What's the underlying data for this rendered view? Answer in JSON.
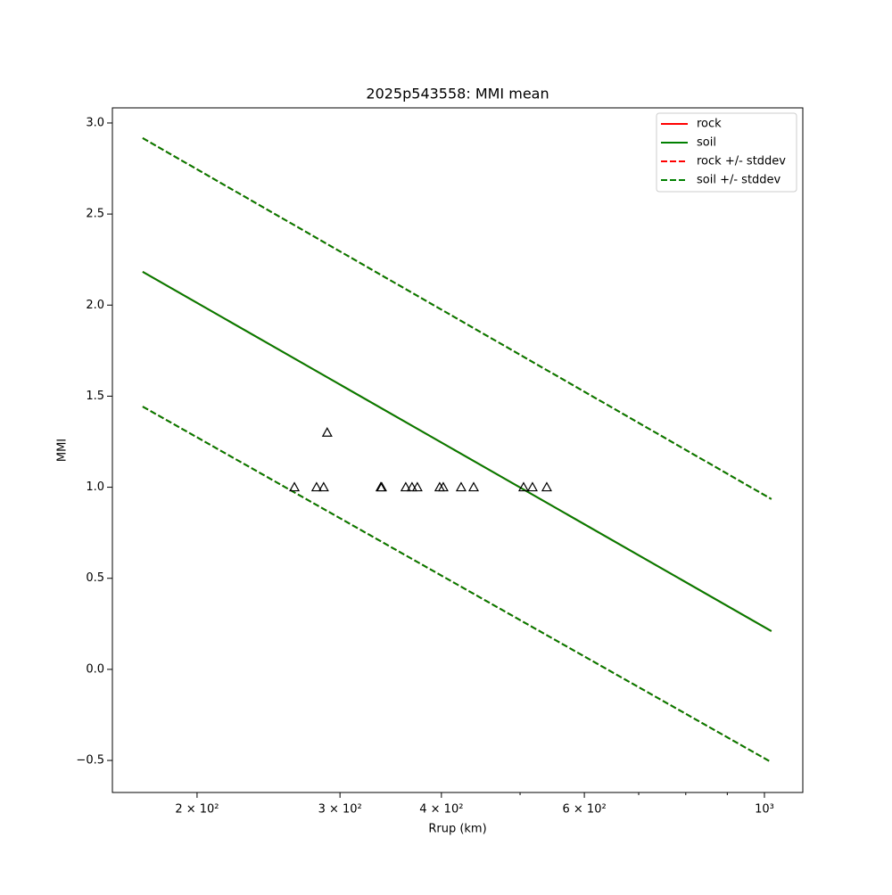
{
  "chart_data": {
    "type": "line",
    "title": "2025p543558: MMI mean",
    "xlabel": "Rrup (km)",
    "ylabel": "MMI",
    "xscale": "log",
    "xlim": [
      157.3,
      1115
    ],
    "ylim": [
      -0.676,
      3.083
    ],
    "xticks": [
      {
        "value": 200,
        "label": "2 × 10²"
      },
      {
        "value": 300,
        "label": "3 × 10²"
      },
      {
        "value": 400,
        "label": "4 × 10²"
      },
      {
        "value": 600,
        "label": "6 × 10²"
      },
      {
        "value": 1000,
        "label": "10³"
      }
    ],
    "xminorticks": [
      500,
      700,
      800,
      900
    ],
    "yticks": [
      {
        "value": -0.5,
        "label": "−0.5"
      },
      {
        "value": 0,
        "label": "0.0"
      },
      {
        "value": 0.5,
        "label": "0.5"
      },
      {
        "value": 1,
        "label": "1.0"
      },
      {
        "value": 1.5,
        "label": "1.5"
      },
      {
        "value": 2,
        "label": "2.0"
      },
      {
        "value": 2.5,
        "label": "2.5"
      },
      {
        "value": 3,
        "label": "3.0"
      }
    ],
    "legend": "upper right",
    "x": [
      171.4,
      1020
    ],
    "series": [
      {
        "name": "rock",
        "color": "#ff0000",
        "style": "solid",
        "values": [
          2.183,
          0.21
        ]
      },
      {
        "name": "soil",
        "color": "#008000",
        "style": "solid",
        "values": [
          2.183,
          0.21
        ]
      },
      {
        "name": "rock +/- stddev",
        "color": "#ff0000",
        "style": "dashed",
        "upper": [
          2.917,
          0.935
        ],
        "lower": [
          1.443,
          -0.51
        ]
      },
      {
        "name": "soil +/- stddev",
        "color": "#008000",
        "style": "dashed",
        "upper": [
          2.917,
          0.935
        ],
        "lower": [
          1.443,
          -0.51
        ]
      }
    ],
    "observations": {
      "color": "#000000",
      "x": [
        263.6,
        280.7,
        286.4,
        289.3,
        336.8,
        337.7,
        361.5,
        368.0,
        373.6,
        398.0,
        402.1,
        423.0,
        438.3,
        505.0,
        517.9,
        539.3
      ],
      "values": [
        1.0,
        1.0,
        1.0,
        1.3,
        1.0,
        1.0,
        1.0,
        1.0,
        1.0,
        1.0,
        1.0,
        1.0,
        1.0,
        1.0,
        1.0,
        1.0
      ]
    }
  }
}
